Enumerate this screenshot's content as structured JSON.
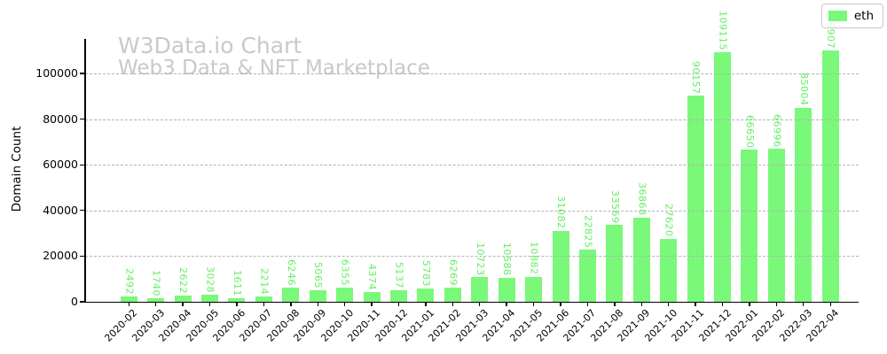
{
  "watermark": {
    "line1": "W3Data.io Chart",
    "line2": "Web3 Data & NFT Marketplace",
    "color": "#c9c9c9"
  },
  "legend": {
    "label": "eth"
  },
  "chart_data": {
    "type": "bar",
    "title": "",
    "xlabel": "",
    "ylabel": "Domain Count",
    "categories": [
      "2020-02",
      "2020-03",
      "2020-04",
      "2020-05",
      "2020-06",
      "2020-07",
      "2020-08",
      "2020-09",
      "2020-10",
      "2020-11",
      "2020-12",
      "2021-01",
      "2021-02",
      "2021-03",
      "2021-04",
      "2021-05",
      "2021-06",
      "2021-07",
      "2021-08",
      "2021-09",
      "2021-10",
      "2021-11",
      "2021-12",
      "2022-01",
      "2022-02",
      "2022-03",
      "2022-04"
    ],
    "series": [
      {
        "name": "eth",
        "values": [
          2492,
          1740,
          2622,
          3028,
          1611,
          2214,
          6246,
          5065,
          6355,
          4374,
          5137,
          5783,
          6269,
          10723,
          10588,
          10882,
          31082,
          22825,
          33569,
          36868,
          27620,
          90157,
          109115,
          66650,
          66996,
          85004,
          109907
        ]
      }
    ],
    "ylim": [
      0,
      115500
    ],
    "yticks": [
      0,
      20000,
      40000,
      60000,
      80000,
      100000
    ],
    "grid": "horizontal-dashed",
    "legend_position": "upper-right",
    "bar_color": "#7af87a",
    "value_label_color": "#63ee63",
    "gridline_color": "#b3b3b3",
    "axis_color": "#000000"
  }
}
